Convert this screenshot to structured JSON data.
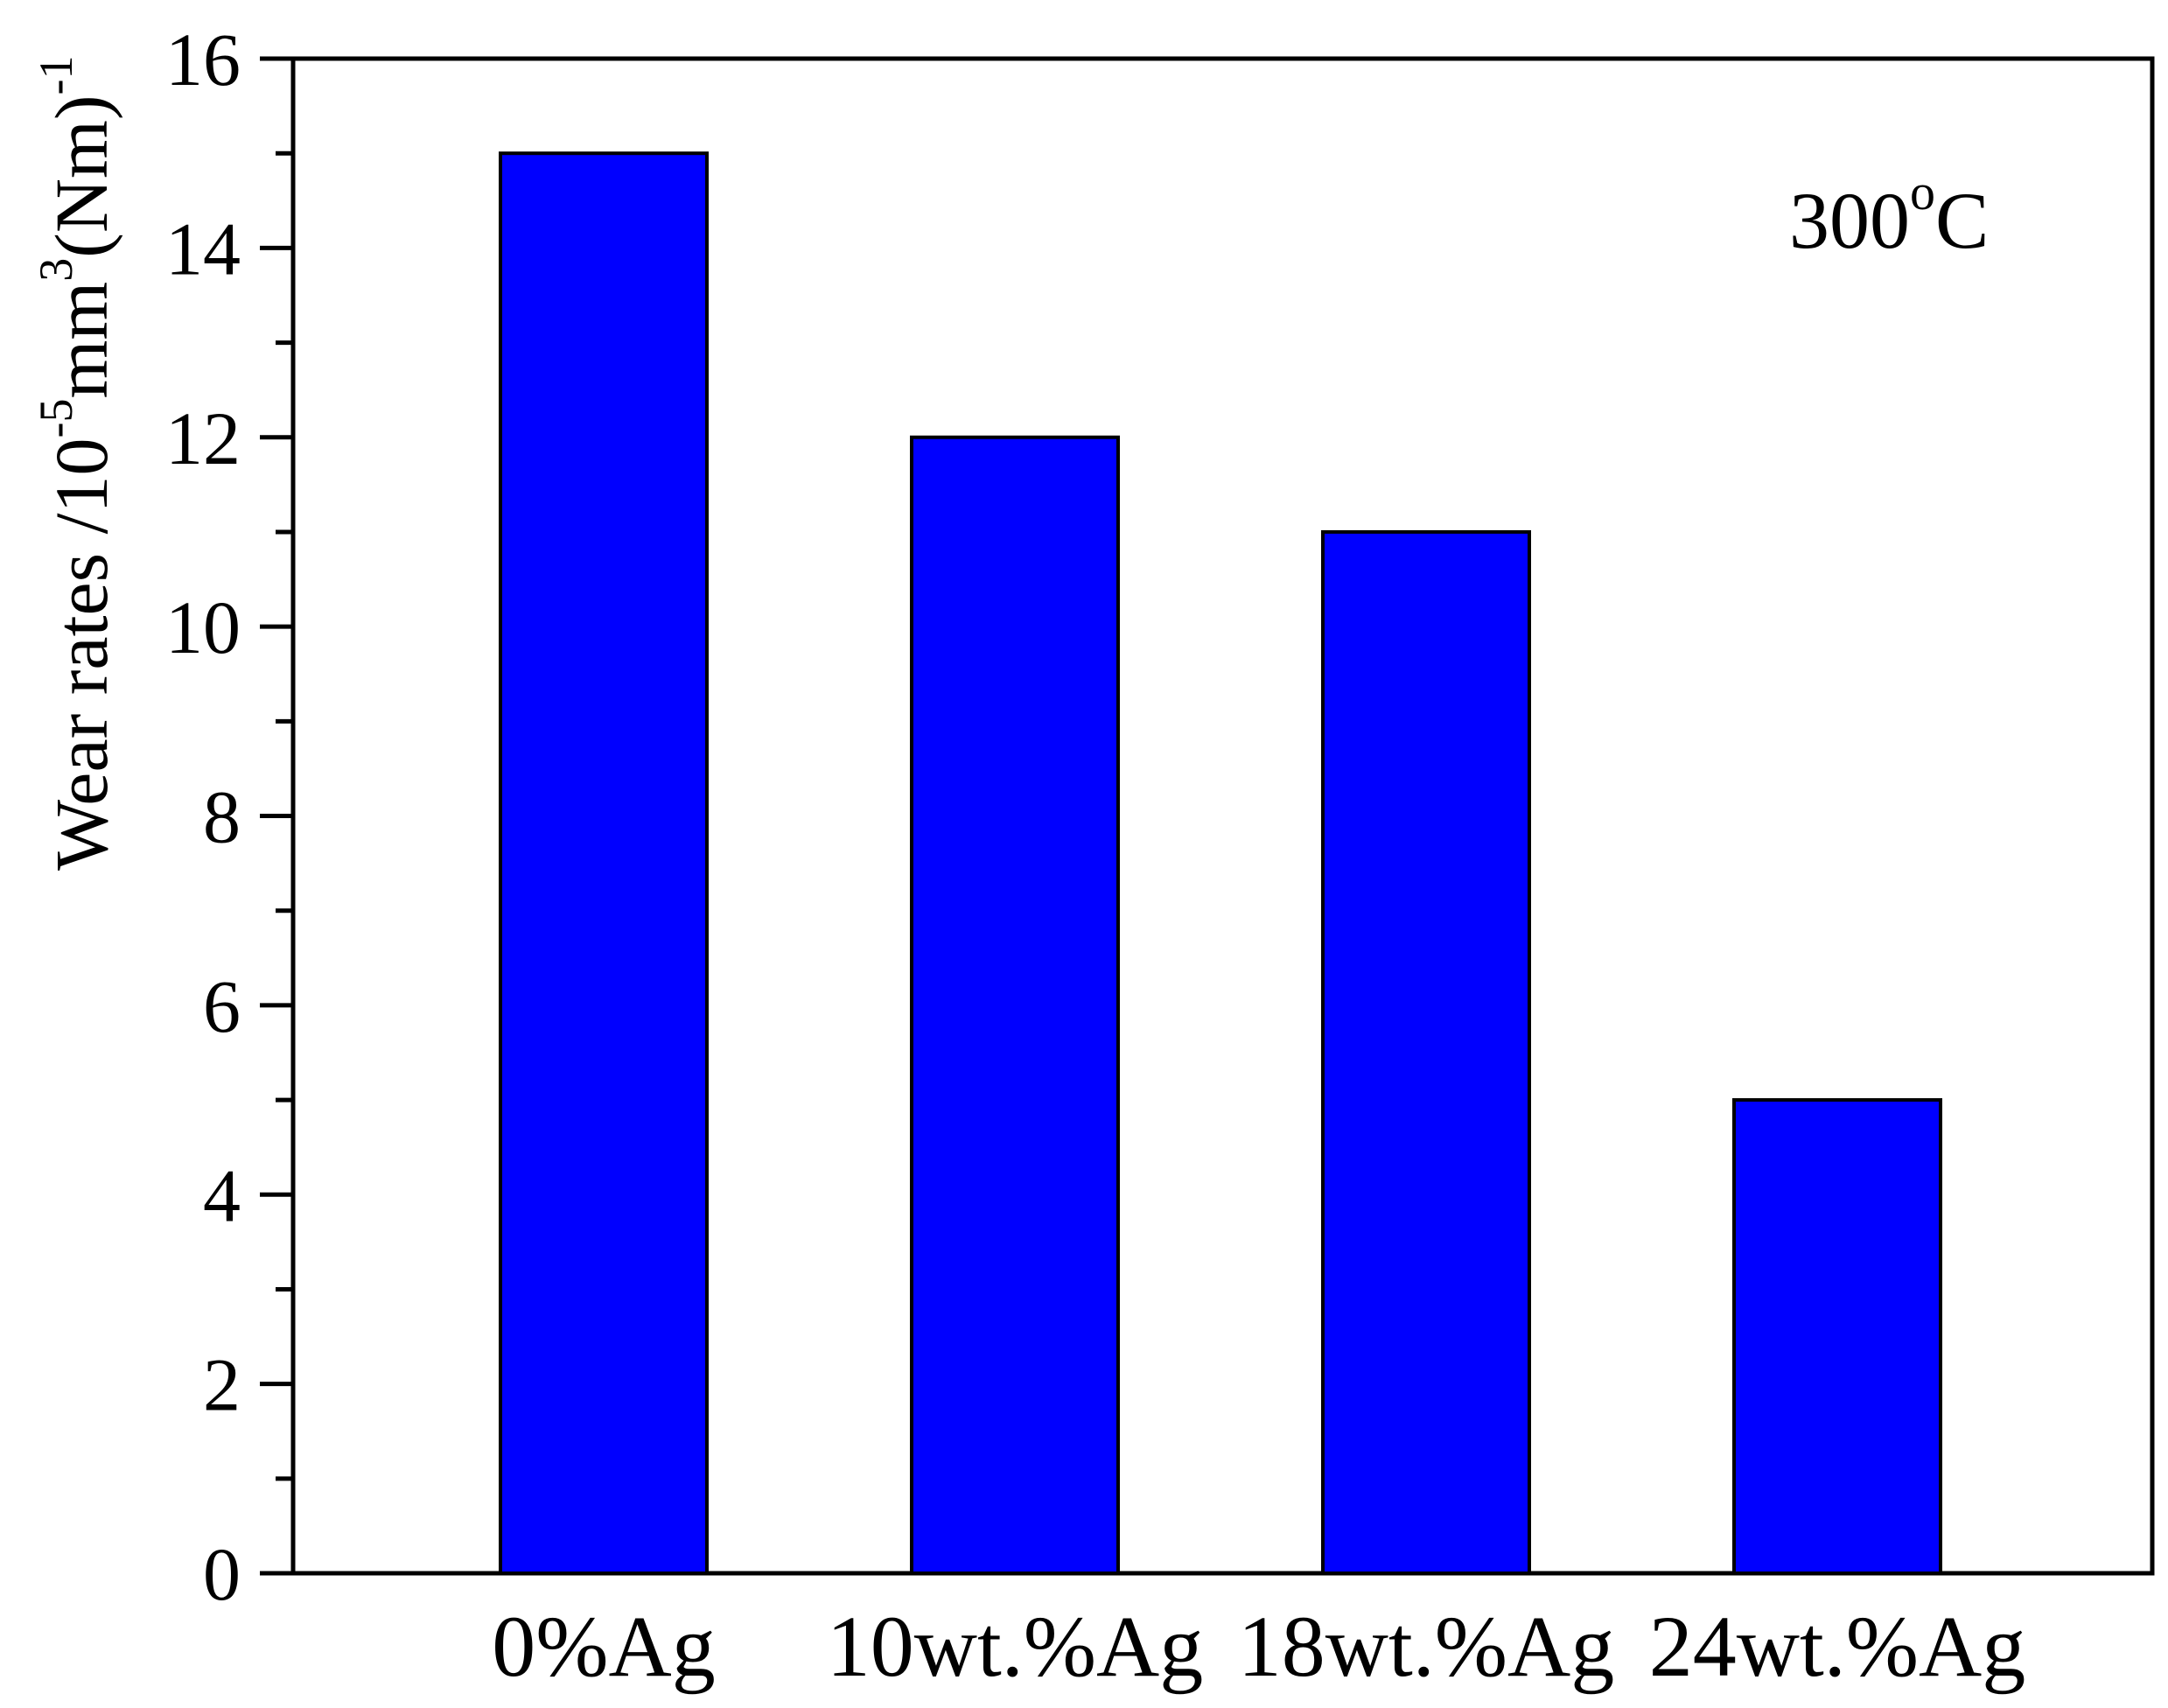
{
  "chart_data": {
    "type": "bar",
    "categories": [
      "0%Ag",
      "10wt.%Ag",
      "18wt.%Ag",
      "24wt.%Ag"
    ],
    "values": [
      15,
      12,
      11,
      5
    ],
    "xlabel": "",
    "ylabel": {
      "prefix": "Wear rates /10",
      "exp1": "-5",
      "mid": "mm",
      "exp2": "3",
      "suffix": "(Nm)",
      "exp3": "-1"
    },
    "ylim": [
      0,
      16
    ],
    "yticks": [
      0,
      2,
      4,
      6,
      8,
      10,
      12,
      14,
      16
    ],
    "annotation": {
      "main": "300",
      "sup": "o",
      "unit": "C"
    },
    "grid": false,
    "legend": "none",
    "bar_color": "#0000FF"
  }
}
